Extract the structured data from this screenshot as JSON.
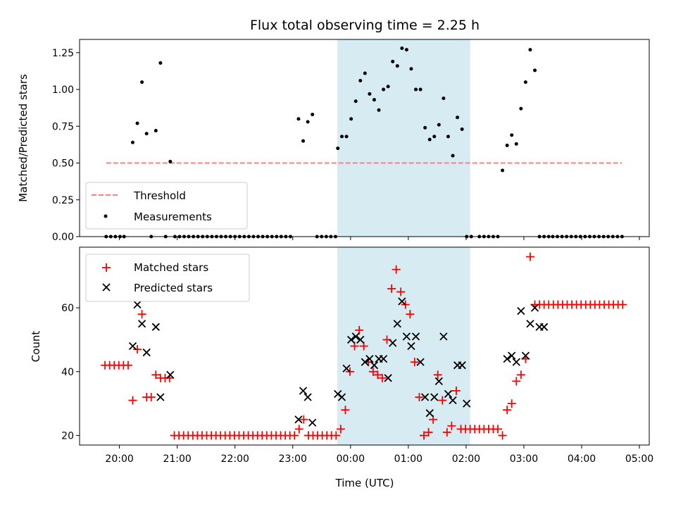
{
  "chart_data": {
    "title": "Flux total observing time = 2.25 h",
    "xlabel": "Time (UTC)",
    "x_ticks": [
      "20:00",
      "21:00",
      "22:00",
      "23:00",
      "00:00",
      "01:00",
      "02:00",
      "03:00",
      "04:00",
      "05:00"
    ],
    "x_tick_hours": [
      20,
      21,
      22,
      23,
      24,
      25,
      26,
      27,
      28,
      29
    ],
    "xlim_hours": [
      19.31,
      29.17
    ],
    "highlight_span_hours": [
      23.77,
      26.07
    ],
    "highlight_color": "#add8e6",
    "panels": [
      {
        "type": "scatter",
        "ylabel": "Matched/Predicted stars",
        "ylim": [
          0,
          1.34
        ],
        "y_ticks": [
          0.0,
          0.25,
          0.5,
          0.75,
          1.0,
          1.25
        ],
        "y_tick_labels": [
          "0.00",
          "0.25",
          "0.50",
          "0.75",
          "1.00",
          "1.25"
        ],
        "threshold": {
          "name": "Threshold",
          "value": 0.5,
          "x_range_hours": [
            19.77,
            28.7
          ],
          "color": "#ff7f7f"
        },
        "legend": {
          "position": "lower-left",
          "entries": [
            "Threshold",
            "Measurements"
          ]
        },
        "series": [
          {
            "name": "Measurements",
            "color": "#000000",
            "x_hours": [
              19.77,
              19.85,
              19.93,
              20.01,
              20.08,
              20.23,
              20.31,
              20.39,
              20.47,
              20.55,
              20.63,
              20.71,
              20.8,
              20.88,
              20.96,
              21.04,
              21.12,
              21.2,
              21.28,
              21.36,
              21.44,
              21.52,
              21.6,
              21.68,
              21.76,
              21.84,
              21.92,
              22.0,
              22.08,
              22.16,
              22.24,
              22.32,
              22.4,
              22.48,
              22.56,
              22.64,
              22.72,
              22.8,
              22.88,
              22.96,
              23.1,
              23.18,
              23.26,
              23.34,
              23.42,
              23.5,
              23.58,
              23.66,
              23.74,
              23.78,
              23.85,
              23.93,
              24.01,
              24.09,
              24.17,
              24.25,
              24.33,
              24.41,
              24.49,
              24.57,
              24.65,
              24.73,
              24.81,
              24.89,
              24.97,
              25.05,
              25.13,
              25.21,
              25.29,
              25.37,
              25.45,
              25.53,
              25.61,
              25.69,
              25.77,
              25.85,
              25.93,
              26.01,
              26.09,
              26.23,
              26.31,
              26.39,
              26.47,
              26.55,
              26.63,
              26.71,
              26.79,
              26.87,
              26.95,
              27.03,
              27.11,
              27.19,
              27.27,
              27.35,
              27.43,
              27.5,
              27.58,
              27.66,
              27.74,
              27.82,
              27.9,
              27.98,
              28.06,
              28.14,
              28.22,
              28.3,
              28.38,
              28.46,
              28.54,
              28.62,
              28.7
            ],
            "y": [
              0,
              0,
              0,
              0,
              0,
              0.64,
              0.77,
              1.05,
              0.7,
              0,
              0.72,
              1.18,
              0,
              0.51,
              0,
              0,
              0,
              0,
              0,
              0,
              0,
              0,
              0,
              0,
              0,
              0,
              0,
              0,
              0,
              0,
              0,
              0,
              0,
              0,
              0,
              0,
              0,
              0,
              0,
              0,
              0.8,
              0.65,
              0.78,
              0.83,
              0,
              0,
              0,
              0,
              0,
              0.6,
              0.68,
              0.68,
              0.8,
              0.92,
              1.06,
              1.11,
              0.97,
              0.93,
              0.86,
              1.0,
              1.02,
              1.19,
              1.16,
              1.28,
              1.27,
              1.14,
              1.0,
              1.0,
              0.74,
              0.66,
              0.68,
              0.76,
              0.94,
              0.68,
              0.55,
              0.81,
              0.73,
              0,
              0,
              0,
              0,
              0,
              0,
              0,
              0.45,
              0.62,
              0.69,
              0.63,
              0.87,
              1.05,
              1.27,
              1.13,
              0,
              0,
              0,
              0,
              0,
              0,
              0,
              0,
              0,
              0,
              0,
              0,
              0,
              0,
              0,
              0,
              0,
              0,
              0
            ]
          }
        ]
      },
      {
        "type": "scatter",
        "ylabel": "Count",
        "ylim": [
          17,
          79
        ],
        "y_ticks": [
          20,
          40,
          60
        ],
        "y_tick_labels": [
          "20",
          "40",
          "60"
        ],
        "legend": {
          "position": "upper-left",
          "entries": [
            "Matched stars",
            "Predicted stars"
          ]
        },
        "series": [
          {
            "name": "Matched stars",
            "marker": "plus",
            "color": "#ff0000",
            "x_hours": [
              19.75,
              19.83,
              19.91,
              19.99,
              20.07,
              20.15,
              20.23,
              20.31,
              20.39,
              20.47,
              20.55,
              20.63,
              20.71,
              20.79,
              20.87,
              20.95,
              21.03,
              21.11,
              21.19,
              21.27,
              21.35,
              21.43,
              21.51,
              21.59,
              21.67,
              21.75,
              21.83,
              21.91,
              21.99,
              22.07,
              22.15,
              22.23,
              22.31,
              22.39,
              22.47,
              22.55,
              22.63,
              22.71,
              22.79,
              22.87,
              22.95,
              23.03,
              23.11,
              23.19,
              23.27,
              23.35,
              23.43,
              23.51,
              23.59,
              23.67,
              23.75,
              23.83,
              23.91,
              23.99,
              24.07,
              24.15,
              24.23,
              24.31,
              24.39,
              24.47,
              24.55,
              24.63,
              24.71,
              24.79,
              24.87,
              24.95,
              25.03,
              25.11,
              25.19,
              25.27,
              25.35,
              25.43,
              25.51,
              25.59,
              25.67,
              25.75,
              25.83,
              25.91,
              25.99,
              26.07,
              26.15,
              26.23,
              26.31,
              26.39,
              26.47,
              26.55,
              26.63,
              26.71,
              26.79,
              26.87,
              26.95,
              27.03,
              27.11,
              27.19,
              27.27,
              27.35,
              27.43,
              27.51,
              27.59,
              27.67,
              27.75,
              27.83,
              27.91,
              27.99,
              28.07,
              28.15,
              28.23,
              28.31,
              28.39,
              28.47,
              28.55,
              28.63,
              28.71
            ],
            "y": [
              42,
              42,
              42,
              42,
              42,
              42,
              31,
              47,
              58,
              32,
              32,
              39,
              38,
              38,
              38,
              20,
              20,
              20,
              20,
              20,
              20,
              20,
              20,
              20,
              20,
              20,
              20,
              20,
              20,
              20,
              20,
              20,
              20,
              20,
              20,
              20,
              20,
              20,
              20,
              20,
              20,
              20,
              22,
              25,
              20,
              20,
              20,
              20,
              20,
              20,
              20,
              22,
              28,
              40,
              48,
              53,
              48,
              43,
              40,
              39,
              38,
              50,
              66,
              72,
              65,
              61,
              58,
              43,
              32,
              20,
              21,
              25,
              39,
              31,
              21,
              23,
              34,
              22,
              22,
              22,
              22,
              22,
              22,
              22,
              22,
              22,
              20,
              28,
              30,
              37,
              39,
              44,
              76,
              61,
              61,
              61,
              61,
              61,
              61,
              61,
              61,
              61,
              61,
              61,
              61,
              61,
              61,
              61,
              61,
              61,
              61,
              61,
              61
            ]
          },
          {
            "name": "Predicted stars",
            "marker": "x",
            "color": "#000000",
            "x_hours": [
              20.23,
              20.31,
              20.39,
              20.47,
              20.63,
              20.71,
              20.88,
              23.1,
              23.18,
              23.26,
              23.34,
              23.78,
              23.85,
              23.93,
              24.01,
              24.09,
              24.17,
              24.25,
              24.33,
              24.41,
              24.49,
              24.57,
              24.65,
              24.73,
              24.81,
              24.89,
              24.97,
              25.05,
              25.13,
              25.21,
              25.29,
              25.37,
              25.45,
              25.53,
              25.61,
              25.69,
              25.77,
              25.85,
              25.93,
              26.01,
              26.71,
              26.79,
              26.87,
              26.95,
              27.03,
              27.11,
              27.19,
              27.27,
              27.35
            ],
            "y": [
              48,
              61,
              55,
              46,
              54,
              32,
              39,
              25,
              34,
              32,
              24,
              33,
              32,
              41,
              50,
              51,
              50,
              43,
              44,
              42,
              44,
              44,
              38,
              49,
              55,
              62,
              51,
              48,
              51,
              43,
              32,
              27,
              32,
              37,
              51,
              33,
              31,
              42,
              42,
              30,
              44,
              45,
              43,
              59,
              45,
              55,
              60,
              54,
              54
            ]
          }
        ]
      }
    ]
  }
}
